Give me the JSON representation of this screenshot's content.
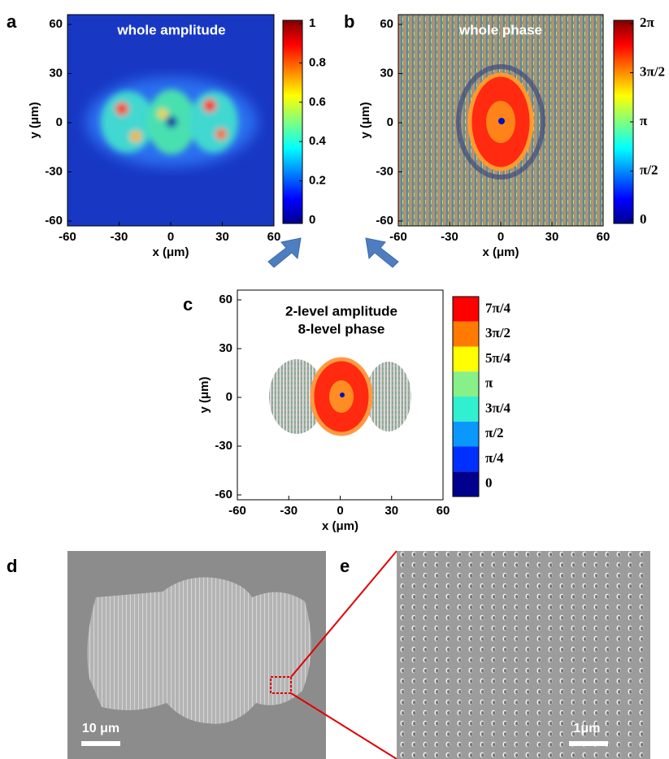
{
  "panels": [
    {
      "label": "a",
      "title": "whole amplitude",
      "xlabel": "x (μm)",
      "ylabel": "y (μm)",
      "xticks": [
        -60,
        -30,
        0,
        30,
        60
      ],
      "yticks": [
        60,
        30,
        0,
        -30,
        -60
      ],
      "colorbar_ticks": [
        1,
        0.8,
        0.6,
        0.4,
        0.2,
        0
      ]
    },
    {
      "label": "b",
      "title": "whole phase",
      "xlabel": "x (μm)",
      "ylabel": "y (μm)",
      "xticks": [
        -60,
        -30,
        0,
        30,
        60
      ],
      "yticks": [
        60,
        30,
        0,
        -30,
        -60
      ],
      "colorbar_ticks": [
        {
          "value": 6.283,
          "label": "2π"
        },
        {
          "value": 4.712,
          "label": "3π/2"
        },
        {
          "value": 3.142,
          "label": "π"
        },
        {
          "value": 1.571,
          "label": "π/2"
        },
        0
      ]
    },
    {
      "label": "c",
      "title": [
        "2-level amplitude",
        "8-level phase"
      ],
      "xlabel": "x (μm)",
      "ylabel": "y (μm)",
      "xticks": [
        -60,
        -30,
        0,
        30,
        60
      ],
      "yticks": [
        60,
        30,
        0,
        -30,
        -60
      ],
      "levels": [
        {
          "label": "7π/4",
          "color": "#ff0000"
        },
        {
          "label": "3π/2",
          "color": "#ff7a00"
        },
        {
          "label": "5π/4",
          "color": "#ffff00"
        },
        {
          "label": "π",
          "color": "#88f088"
        },
        {
          "label": "3π/4",
          "color": "#30f0d0"
        },
        {
          "label": "π/2",
          "color": "#0a98ff"
        },
        {
          "label": "π/4",
          "color": "#0030ff"
        },
        {
          "label": "0",
          "color": "#00008f"
        }
      ]
    },
    {
      "label": "d",
      "scale_bar": "10 μm"
    },
    {
      "label": "e",
      "scale_bar": "1μm"
    }
  ]
}
